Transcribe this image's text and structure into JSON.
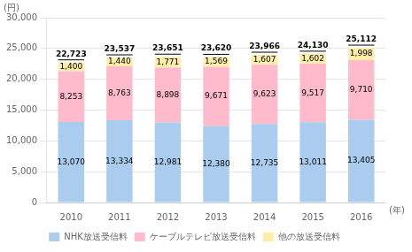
{
  "chart_data": {
    "type": "bar",
    "stacked": true,
    "categories": [
      "2010",
      "2011",
      "2012",
      "2013",
      "2014",
      "2015",
      "2016"
    ],
    "series": [
      {
        "name": "NHK放送受信料",
        "color": "#aaccee",
        "values": [
          13070,
          13334,
          12981,
          12380,
          12735,
          13011,
          13405
        ],
        "value_labels": [
          "13,070",
          "13,334",
          "12,981",
          "12,380",
          "12,735",
          "13,011",
          "13,405"
        ]
      },
      {
        "name": "ケーブルテレビ放送受信料",
        "color": "#ffbbcc",
        "values": [
          8253,
          8763,
          8898,
          9671,
          9623,
          9517,
          9710
        ],
        "value_labels": [
          "8,253",
          "8,763",
          "8,898",
          "9,671",
          "9,623",
          "9,517",
          "9,710"
        ]
      },
      {
        "name": "他の放送受信料",
        "color": "#ffeeaa",
        "values": [
          1400,
          1440,
          1771,
          1569,
          1607,
          1602,
          1998
        ],
        "value_labels": [
          "1,400",
          "1,440",
          "1,771",
          "1,569",
          "1,607",
          "1,602",
          "1,998"
        ]
      }
    ],
    "totals": [
      22723,
      23537,
      23651,
      23620,
      23966,
      24130,
      25112
    ],
    "total_labels": [
      "22,723",
      "23,537",
      "23,651",
      "23,620",
      "23,966",
      "24,130",
      "25,112"
    ],
    "ylabel": "(円)",
    "xlabel": "(年)",
    "ylim": [
      0,
      30000
    ],
    "yticks": [
      {
        "value": 0,
        "label": "0"
      },
      {
        "value": 5000,
        "label": "5,000"
      },
      {
        "value": 10000,
        "label": "10,000"
      },
      {
        "value": 15000,
        "label": "15,000"
      },
      {
        "value": 20000,
        "label": "20,000"
      },
      {
        "value": 25000,
        "label": "25,000"
      },
      {
        "value": 30000,
        "label": "30,000"
      }
    ],
    "grid": true,
    "data_labels": true,
    "legend": "bottom"
  }
}
